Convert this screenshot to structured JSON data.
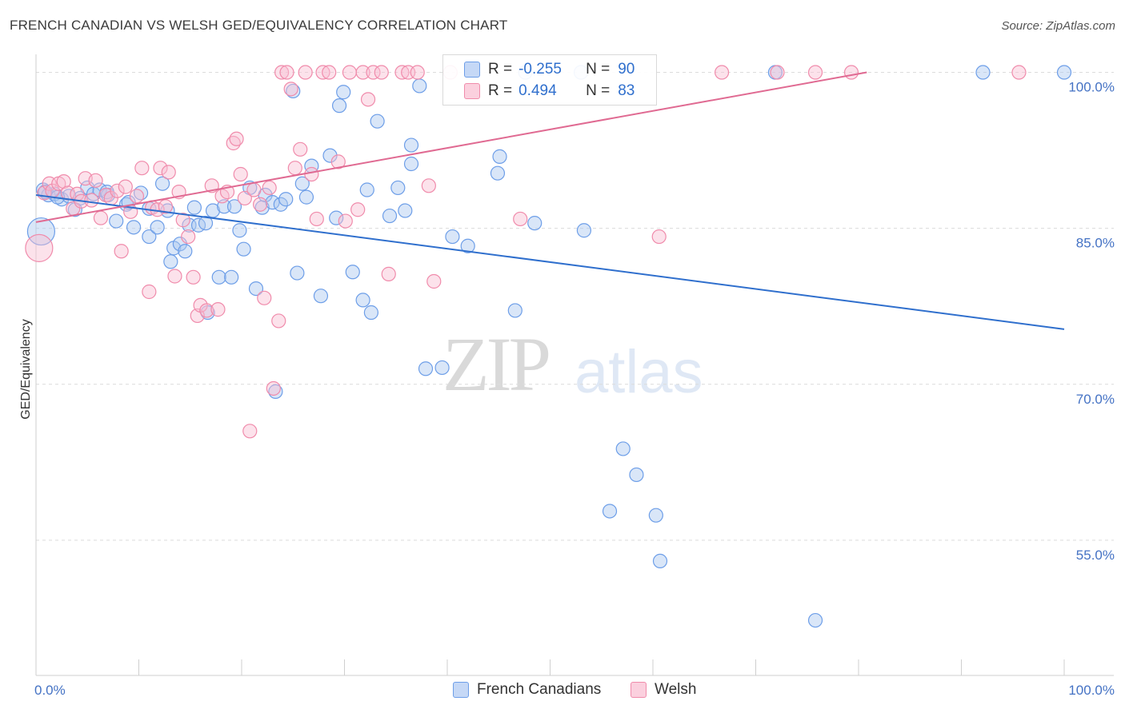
{
  "title": "FRENCH CANADIAN VS WELSH GED/EQUIVALENCY CORRELATION CHART",
  "source": "Source: ZipAtlas.com",
  "watermark": {
    "zip": "ZIP",
    "atlas": "atlas"
  },
  "legend": {
    "rows": [
      {
        "r_label": "R =",
        "r_value": "-0.255",
        "n_label": "N =",
        "n_value": "90",
        "color": "#6d9ee8"
      },
      {
        "r_label": "R =",
        "r_value": "0.494",
        "n_label": "N =",
        "n_value": "83",
        "color": "#f08bab"
      }
    ]
  },
  "bottom_legend": {
    "items": [
      {
        "label": "French Canadians",
        "color": "#6d9ee8"
      },
      {
        "label": "Welsh",
        "color": "#f08bab"
      }
    ]
  },
  "chart_data": {
    "type": "scatter",
    "ylabel": "GED/Equivalency",
    "xlim": [
      0,
      100
    ],
    "ylim": [
      42,
      103.5
    ],
    "x_tick_labels": [
      {
        "value": 0,
        "label": "0.0%"
      },
      {
        "value": 100,
        "label": "100.0%"
      }
    ],
    "y_tick_labels": [
      {
        "value": 55,
        "label": "55.0%"
      },
      {
        "value": 70,
        "label": "70.0%"
      },
      {
        "value": 85,
        "label": "85.0%"
      },
      {
        "value": 100,
        "label": "100.0%"
      }
    ],
    "grid": "horizontal dashed",
    "series": [
      {
        "name": "French Canadians",
        "color": "#6d9ee8",
        "line_color": "#2f6fcd",
        "trend": {
          "x": [
            0,
            100
          ],
          "y": [
            88.2,
            75.3
          ]
        },
        "points": [
          [
            0.5,
            84.7
          ],
          [
            0.7,
            88.7
          ],
          [
            1.2,
            88.2
          ],
          [
            1.8,
            88.3
          ],
          [
            2.5,
            87.8
          ],
          [
            3.2,
            88.1
          ],
          [
            3.8,
            86.8
          ],
          [
            4.3,
            87.9
          ],
          [
            5.0,
            88.9
          ],
          [
            5.6,
            88.3
          ],
          [
            6.2,
            88.7
          ],
          [
            7.0,
            88.2
          ],
          [
            7.8,
            85.7
          ],
          [
            8.8,
            87.3
          ],
          [
            9.5,
            85.1
          ],
          [
            10.2,
            88.4
          ],
          [
            11.0,
            86.9
          ],
          [
            11.0,
            84.2
          ],
          [
            11.8,
            85.1
          ],
          [
            12.3,
            89.3
          ],
          [
            12.8,
            86.7
          ],
          [
            13.1,
            81.8
          ],
          [
            13.4,
            83.1
          ],
          [
            14.0,
            83.5
          ],
          [
            14.5,
            82.8
          ],
          [
            14.9,
            85.3
          ],
          [
            15.4,
            87.0
          ],
          [
            15.8,
            85.3
          ],
          [
            16.5,
            85.5
          ],
          [
            16.7,
            76.9
          ],
          [
            17.2,
            86.7
          ],
          [
            17.8,
            80.3
          ],
          [
            18.3,
            87.1
          ],
          [
            19.0,
            80.3
          ],
          [
            19.3,
            87.1
          ],
          [
            19.8,
            84.8
          ],
          [
            20.2,
            83.0
          ],
          [
            20.8,
            88.9
          ],
          [
            21.4,
            79.2
          ],
          [
            22.0,
            87.0
          ],
          [
            22.3,
            88.2
          ],
          [
            23.0,
            87.5
          ],
          [
            23.3,
            69.3
          ],
          [
            23.8,
            87.3
          ],
          [
            24.3,
            87.8
          ],
          [
            25.0,
            98.2
          ],
          [
            25.4,
            80.7
          ],
          [
            25.9,
            89.3
          ],
          [
            26.3,
            88.0
          ],
          [
            26.8,
            91.0
          ],
          [
            27.7,
            78.5
          ],
          [
            28.6,
            92.0
          ],
          [
            29.2,
            86.0
          ],
          [
            29.5,
            96.8
          ],
          [
            29.9,
            98.1
          ],
          [
            30.8,
            80.8
          ],
          [
            31.8,
            78.1
          ],
          [
            32.2,
            88.7
          ],
          [
            32.6,
            76.9
          ],
          [
            33.2,
            95.3
          ],
          [
            34.4,
            86.2
          ],
          [
            35.2,
            88.9
          ],
          [
            35.9,
            86.7
          ],
          [
            36.5,
            91.2
          ],
          [
            36.5,
            93.0
          ],
          [
            37.3,
            98.7
          ],
          [
            37.9,
            71.5
          ],
          [
            39.5,
            71.6
          ],
          [
            40.5,
            84.2
          ],
          [
            42.0,
            83.3
          ],
          [
            44.9,
            90.3
          ],
          [
            45.1,
            91.9
          ],
          [
            46.6,
            77.1
          ],
          [
            47.6,
            100.0
          ],
          [
            48.5,
            85.5
          ],
          [
            53.0,
            100.0
          ],
          [
            53.3,
            84.8
          ],
          [
            55.8,
            57.8
          ],
          [
            57.1,
            63.8
          ],
          [
            58.4,
            61.3
          ],
          [
            60.3,
            57.4
          ],
          [
            60.7,
            53.0
          ],
          [
            75.8,
            47.3
          ],
          [
            71.9,
            100.0
          ],
          [
            92.1,
            100.0
          ],
          [
            100.0,
            100.0
          ],
          [
            0.9,
            88.5
          ],
          [
            2.1,
            88.0
          ],
          [
            6.9,
            88.5
          ],
          [
            9.0,
            87.5
          ]
        ]
      },
      {
        "name": "Welsh",
        "color": "#f08bab",
        "line_color": "#e06a92",
        "trend": {
          "x": [
            0,
            80.8
          ],
          "y": [
            85.6,
            100.0
          ]
        },
        "points": [
          [
            0.3,
            83.1
          ],
          [
            0.8,
            88.4
          ],
          [
            1.3,
            89.3
          ],
          [
            1.6,
            88.6
          ],
          [
            2.2,
            89.3
          ],
          [
            2.7,
            89.5
          ],
          [
            3.1,
            88.4
          ],
          [
            3.6,
            86.9
          ],
          [
            4.0,
            88.3
          ],
          [
            4.4,
            87.6
          ],
          [
            4.8,
            89.8
          ],
          [
            5.4,
            87.7
          ],
          [
            5.8,
            89.6
          ],
          [
            6.3,
            86.0
          ],
          [
            6.8,
            88.2
          ],
          [
            7.3,
            87.9
          ],
          [
            7.9,
            88.6
          ],
          [
            8.3,
            82.8
          ],
          [
            8.7,
            89.0
          ],
          [
            9.2,
            86.6
          ],
          [
            9.8,
            88.1
          ],
          [
            10.3,
            90.8
          ],
          [
            11.0,
            78.9
          ],
          [
            11.3,
            87.0
          ],
          [
            11.8,
            86.8
          ],
          [
            12.1,
            90.8
          ],
          [
            12.6,
            87.1
          ],
          [
            12.9,
            90.4
          ],
          [
            13.5,
            80.4
          ],
          [
            13.9,
            88.5
          ],
          [
            14.3,
            85.8
          ],
          [
            14.8,
            84.2
          ],
          [
            15.3,
            80.3
          ],
          [
            15.7,
            76.6
          ],
          [
            16.0,
            77.6
          ],
          [
            16.6,
            77.1
          ],
          [
            17.1,
            89.1
          ],
          [
            17.7,
            77.2
          ],
          [
            18.1,
            88.1
          ],
          [
            18.6,
            88.5
          ],
          [
            19.2,
            93.2
          ],
          [
            19.5,
            93.6
          ],
          [
            19.9,
            90.2
          ],
          [
            20.3,
            87.9
          ],
          [
            20.8,
            65.5
          ],
          [
            21.2,
            88.7
          ],
          [
            21.8,
            87.3
          ],
          [
            22.2,
            78.3
          ],
          [
            22.7,
            88.9
          ],
          [
            23.1,
            69.6
          ],
          [
            23.6,
            76.1
          ],
          [
            23.9,
            100.0
          ],
          [
            24.4,
            100.0
          ],
          [
            24.8,
            98.4
          ],
          [
            25.2,
            90.8
          ],
          [
            25.7,
            92.6
          ],
          [
            26.2,
            100.0
          ],
          [
            26.8,
            90.2
          ],
          [
            27.3,
            85.9
          ],
          [
            27.9,
            100.0
          ],
          [
            28.5,
            100.0
          ],
          [
            29.4,
            91.4
          ],
          [
            30.1,
            85.7
          ],
          [
            30.5,
            100.0
          ],
          [
            31.3,
            86.8
          ],
          [
            31.8,
            100.0
          ],
          [
            32.3,
            97.4
          ],
          [
            32.8,
            100.0
          ],
          [
            33.6,
            100.0
          ],
          [
            34.3,
            80.6
          ],
          [
            35.6,
            100.0
          ],
          [
            36.2,
            100.0
          ],
          [
            37.1,
            100.0
          ],
          [
            38.2,
            89.1
          ],
          [
            38.7,
            79.9
          ],
          [
            40.3,
            100.0
          ],
          [
            47.1,
            85.9
          ],
          [
            60.6,
            84.2
          ],
          [
            66.7,
            100.0
          ],
          [
            72.1,
            100.0
          ],
          [
            75.8,
            100.0
          ],
          [
            79.3,
            100.0
          ],
          [
            95.6,
            100.0
          ]
        ]
      }
    ]
  }
}
